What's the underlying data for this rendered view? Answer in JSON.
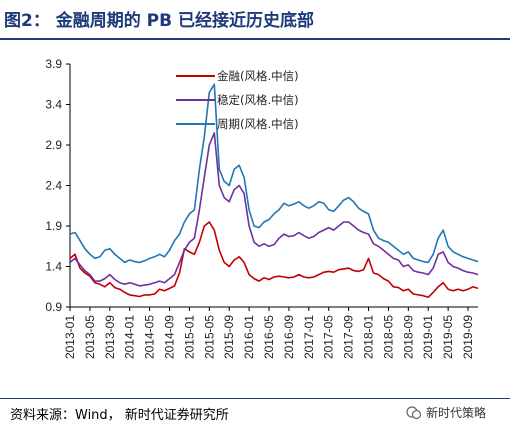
{
  "figure_title": "图2：  金融周期的 PB 已经接近历史底部",
  "source": "资料来源：Wind， 新时代证券研究所",
  "watermark": "新时代策略",
  "chart_data": {
    "type": "line",
    "title": "",
    "xlabel": "",
    "ylabel": "",
    "ylim": [
      0.9,
      3.9
    ],
    "yticks": [
      "0.9",
      "1.4",
      "1.9",
      "2.4",
      "2.9",
      "3.4",
      "3.9"
    ],
    "xticks": [
      "2013-01",
      "2013-05",
      "2013-09",
      "2014-01",
      "2014-05",
      "2014-09",
      "2015-01",
      "2015-05",
      "2015-09",
      "2016-01",
      "2016-05",
      "2016-09",
      "2017-01",
      "2017-05",
      "2017-09",
      "2018-01",
      "2018-05",
      "2018-09",
      "2019-01",
      "2019-05",
      "2019-09"
    ],
    "x": [
      "2013-01",
      "2013-02",
      "2013-03",
      "2013-04",
      "2013-05",
      "2013-06",
      "2013-07",
      "2013-08",
      "2013-09",
      "2013-10",
      "2013-11",
      "2013-12",
      "2014-01",
      "2014-02",
      "2014-03",
      "2014-04",
      "2014-05",
      "2014-06",
      "2014-07",
      "2014-08",
      "2014-09",
      "2014-10",
      "2014-11",
      "2014-12",
      "2015-01",
      "2015-02",
      "2015-03",
      "2015-04",
      "2015-05",
      "2015-06",
      "2015-07",
      "2015-08",
      "2015-09",
      "2015-10",
      "2015-11",
      "2015-12",
      "2016-01",
      "2016-02",
      "2016-03",
      "2016-04",
      "2016-05",
      "2016-06",
      "2016-07",
      "2016-08",
      "2016-09",
      "2016-10",
      "2016-11",
      "2016-12",
      "2017-01",
      "2017-02",
      "2017-03",
      "2017-04",
      "2017-05",
      "2017-06",
      "2017-07",
      "2017-08",
      "2017-09",
      "2017-10",
      "2017-11",
      "2017-12",
      "2018-01",
      "2018-02",
      "2018-03",
      "2018-04",
      "2018-05",
      "2018-06",
      "2018-07",
      "2018-08",
      "2018-09",
      "2018-10",
      "2018-11",
      "2018-12",
      "2019-01",
      "2019-02",
      "2019-03",
      "2019-04",
      "2019-05",
      "2019-06",
      "2019-07",
      "2019-08",
      "2019-09",
      "2019-10",
      "2019-11"
    ],
    "series": [
      {
        "name": "金融(风格.中信)",
        "color": "#c00000",
        "values": [
          1.5,
          1.55,
          1.38,
          1.32,
          1.28,
          1.2,
          1.18,
          1.15,
          1.2,
          1.14,
          1.12,
          1.08,
          1.05,
          1.04,
          1.03,
          1.05,
          1.05,
          1.06,
          1.12,
          1.1,
          1.13,
          1.16,
          1.32,
          1.62,
          1.58,
          1.55,
          1.7,
          1.9,
          1.95,
          1.85,
          1.6,
          1.45,
          1.4,
          1.48,
          1.52,
          1.45,
          1.3,
          1.25,
          1.22,
          1.26,
          1.24,
          1.27,
          1.28,
          1.27,
          1.26,
          1.27,
          1.3,
          1.27,
          1.26,
          1.27,
          1.3,
          1.33,
          1.34,
          1.33,
          1.36,
          1.37,
          1.38,
          1.35,
          1.34,
          1.36,
          1.5,
          1.32,
          1.3,
          1.25,
          1.22,
          1.15,
          1.14,
          1.1,
          1.12,
          1.06,
          1.05,
          1.04,
          1.02,
          1.08,
          1.15,
          1.2,
          1.12,
          1.1,
          1.12,
          1.1,
          1.12,
          1.15,
          1.13
        ]
      },
      {
        "name": "稳定(风格.中信)",
        "color": "#7030a0",
        "values": [
          1.45,
          1.5,
          1.42,
          1.35,
          1.3,
          1.22,
          1.22,
          1.25,
          1.3,
          1.24,
          1.2,
          1.18,
          1.2,
          1.18,
          1.16,
          1.17,
          1.18,
          1.2,
          1.22,
          1.2,
          1.25,
          1.3,
          1.45,
          1.6,
          1.7,
          1.75,
          2.1,
          2.5,
          2.9,
          3.05,
          2.4,
          2.25,
          2.2,
          2.35,
          2.4,
          2.3,
          1.9,
          1.7,
          1.65,
          1.68,
          1.65,
          1.67,
          1.75,
          1.8,
          1.77,
          1.78,
          1.82,
          1.78,
          1.75,
          1.77,
          1.82,
          1.85,
          1.88,
          1.85,
          1.9,
          1.95,
          1.95,
          1.9,
          1.85,
          1.82,
          1.8,
          1.68,
          1.65,
          1.6,
          1.55,
          1.5,
          1.48,
          1.4,
          1.42,
          1.35,
          1.33,
          1.32,
          1.3,
          1.38,
          1.55,
          1.58,
          1.45,
          1.4,
          1.38,
          1.35,
          1.33,
          1.32,
          1.3
        ]
      },
      {
        "name": "周期(风格.中信)",
        "color": "#1f77b4",
        "values": [
          1.8,
          1.82,
          1.72,
          1.62,
          1.55,
          1.5,
          1.52,
          1.6,
          1.62,
          1.55,
          1.5,
          1.45,
          1.48,
          1.46,
          1.45,
          1.47,
          1.5,
          1.52,
          1.55,
          1.52,
          1.6,
          1.72,
          1.8,
          1.95,
          2.05,
          2.1,
          2.6,
          3.0,
          3.55,
          3.65,
          2.6,
          2.45,
          2.4,
          2.6,
          2.65,
          2.5,
          2.1,
          1.9,
          1.88,
          1.95,
          1.98,
          2.05,
          2.1,
          2.18,
          2.15,
          2.17,
          2.2,
          2.15,
          2.12,
          2.15,
          2.2,
          2.18,
          2.1,
          2.08,
          2.15,
          2.22,
          2.25,
          2.2,
          2.12,
          2.08,
          2.05,
          1.85,
          1.75,
          1.72,
          1.7,
          1.65,
          1.6,
          1.55,
          1.58,
          1.5,
          1.48,
          1.46,
          1.45,
          1.55,
          1.75,
          1.85,
          1.65,
          1.58,
          1.55,
          1.52,
          1.5,
          1.48,
          1.46
        ]
      }
    ],
    "legend": "top-center",
    "grid": false
  }
}
